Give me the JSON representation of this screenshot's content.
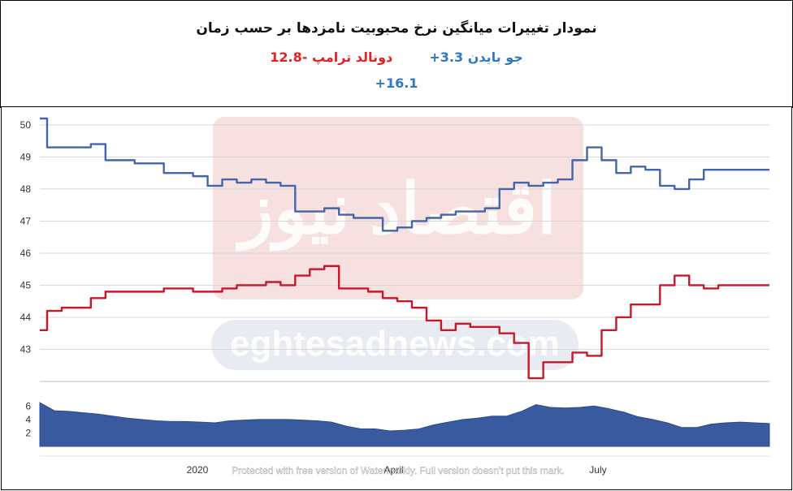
{
  "header": {
    "title": "نمودار تغییرات میانگین نرخ محبوبیت نامزدها بر حسب زمان",
    "biden_label": "جو بایدن",
    "biden_change": "3.3+",
    "trump_label": "دونالد ترامپ",
    "trump_change": "-12.8",
    "difference": "+16.1"
  },
  "watermark": {
    "logo_text": "اقتصاد نیوز",
    "site_text": "eghtesadnews.com",
    "notice": "Protected with free version of Watermarkly. Full version doesn't put this mark."
  },
  "colors": {
    "biden": "#4466a8",
    "trump": "#c8172b",
    "area": "#3a5aa0",
    "grid": "#d8d8d8"
  },
  "chart_data": [
    {
      "type": "line",
      "title": "",
      "ylim": [
        42,
        50.2
      ],
      "yticks": [
        "43",
        "44",
        "45",
        "46",
        "47",
        "48",
        "49",
        "50"
      ],
      "x": [
        0,
        2,
        4,
        6,
        8,
        10,
        12,
        14,
        16,
        18,
        20,
        22,
        24,
        26,
        28,
        30,
        32,
        34,
        36,
        38,
        40,
        42,
        44,
        46,
        48,
        50,
        52,
        54,
        56,
        58,
        60,
        62,
        64,
        66,
        68,
        70,
        72,
        74,
        76,
        78,
        80,
        82,
        84,
        86,
        88,
        90,
        92,
        94,
        96,
        98,
        100
      ],
      "series": [
        {
          "values": [
            50.2,
            49.3,
            49.3,
            49.3,
            49.4,
            48.9,
            48.9,
            48.8,
            48.8,
            48.5,
            48.5,
            48.4,
            48.1,
            48.3,
            48.2,
            48.3,
            48.2,
            48.1,
            47.3,
            47.3,
            47.4,
            47.2,
            47.1,
            47.1,
            46.7,
            46.8,
            47.0,
            47.1,
            47.2,
            47.3,
            47.3,
            47.4,
            48.0,
            48.2,
            48.1,
            48.2,
            48.3,
            48.9,
            49.3,
            48.9,
            48.5,
            48.7,
            48.6,
            48.1,
            48.0,
            48.3,
            48.6,
            48.6,
            48.6,
            48.6,
            48.6
          ]
        },
        {
          "values": [
            43.6,
            44.2,
            44.3,
            44.3,
            44.6,
            44.8,
            44.8,
            44.8,
            44.8,
            44.9,
            44.9,
            44.8,
            44.8,
            44.9,
            45.0,
            45.0,
            45.1,
            45.0,
            45.3,
            45.5,
            45.6,
            44.9,
            44.9,
            44.8,
            44.6,
            44.5,
            44.3,
            43.9,
            43.6,
            43.8,
            43.7,
            43.7,
            43.5,
            43.2,
            42.1,
            42.6,
            42.6,
            42.9,
            42.8,
            43.6,
            44.0,
            44.4,
            44.4,
            45.0,
            45.3,
            45.0,
            44.9,
            45.0,
            45.0,
            45.0,
            45.0
          ]
        }
      ]
    },
    {
      "type": "area",
      "yticks": [
        "2",
        "4",
        "6"
      ],
      "xticks": [
        "2020",
        "April",
        "July"
      ],
      "values": [
        6.5,
        5.3,
        5.2,
        5.0,
        4.8,
        4.5,
        4.2,
        4.0,
        3.8,
        3.7,
        3.7,
        3.6,
        3.5,
        3.8,
        3.9,
        4.0,
        4.0,
        4.0,
        3.9,
        3.8,
        3.6,
        3.0,
        2.6,
        2.6,
        2.3,
        2.4,
        2.6,
        3.2,
        3.6,
        4.0,
        4.2,
        4.5,
        4.5,
        5.2,
        6.2,
        5.8,
        5.7,
        5.8,
        6.0,
        5.6,
        5.1,
        4.4,
        4.0,
        3.5,
        2.8,
        2.8,
        3.3,
        3.5,
        3.6,
        3.5,
        3.4
      ]
    }
  ]
}
